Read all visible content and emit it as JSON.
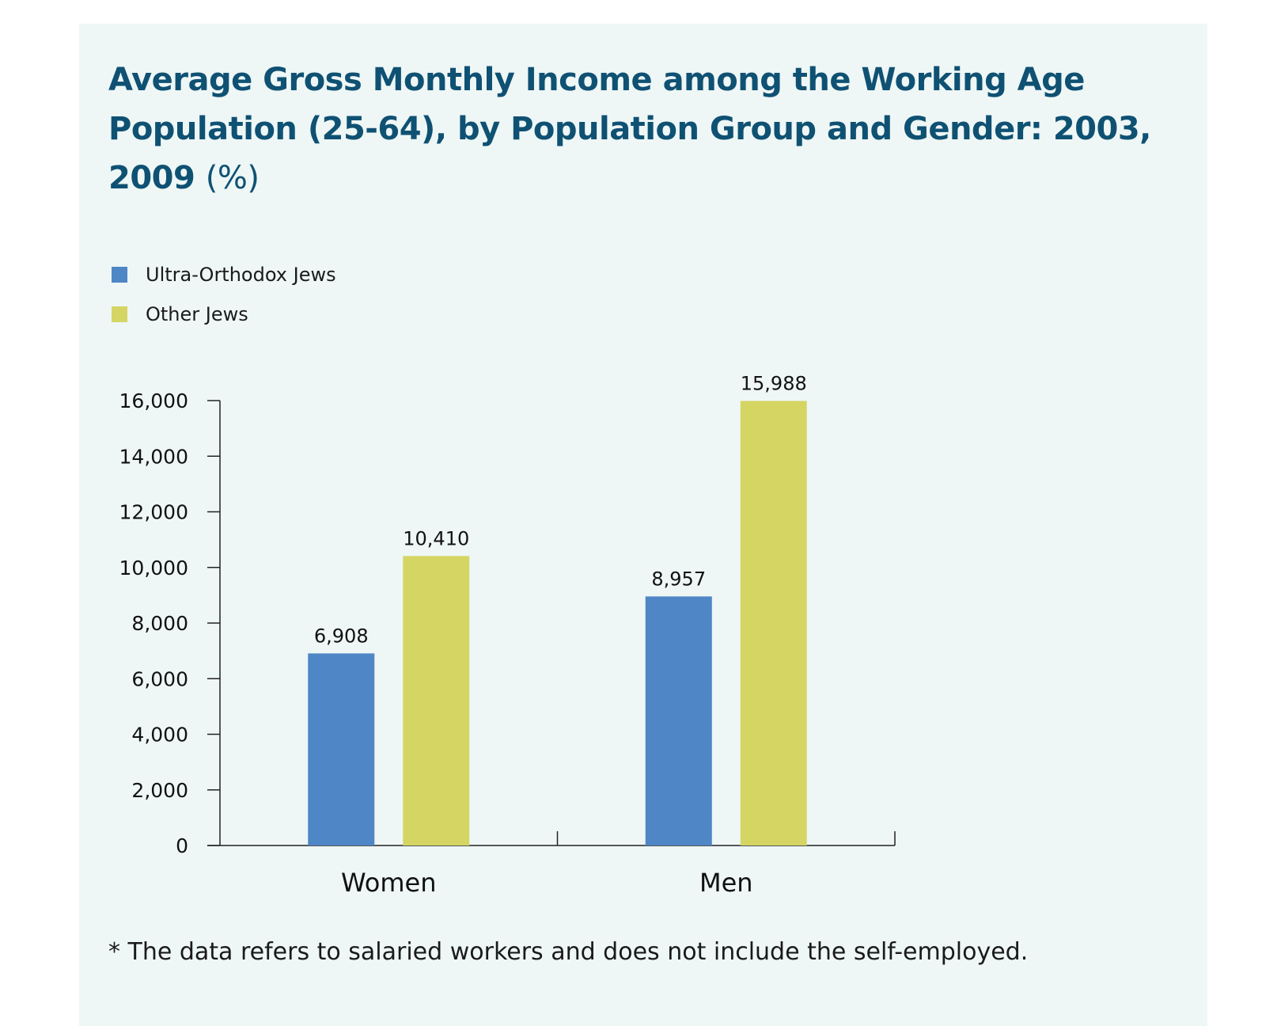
{
  "title": {
    "main": "Average Gross Monthly Income among the Working Age Population (25-64), by Population Group and Gender: 2003, 2009",
    "unit": "(%)"
  },
  "legend": [
    {
      "label": "Ultra-Orthodox Jews",
      "color": "#4f86c6"
    },
    {
      "label": "Other Jews",
      "color": "#d5d564"
    }
  ],
  "chart_data": {
    "type": "bar",
    "title": "Average Gross Monthly Income among the Working Age Population (25-64), by Population Group and Gender: 2003, 2009 (%)",
    "categories": [
      "Women",
      "Men"
    ],
    "series": [
      {
        "name": "Ultra-Orthodox Jews",
        "color": "#4f86c6",
        "values": [
          6908,
          8957
        ],
        "labels": [
          "6,908",
          "8,957"
        ]
      },
      {
        "name": "Other Jews",
        "color": "#d5d564",
        "values": [
          10410,
          15988
        ],
        "labels": [
          "10,410",
          "15,988"
        ]
      }
    ],
    "yticks": [
      0,
      2000,
      4000,
      6000,
      8000,
      10000,
      12000,
      14000,
      16000
    ],
    "ytick_labels": [
      "0",
      "2,000",
      "4,000",
      "6,000",
      "8,000",
      "10,000",
      "12,000",
      "14,000",
      "16,000"
    ],
    "ylim": [
      0,
      16000
    ],
    "xlabel": "",
    "ylabel": "",
    "grid": false,
    "legend_position": "top-left"
  },
  "footnote": "*  The data refers to salaried workers and does not include the self-employed."
}
